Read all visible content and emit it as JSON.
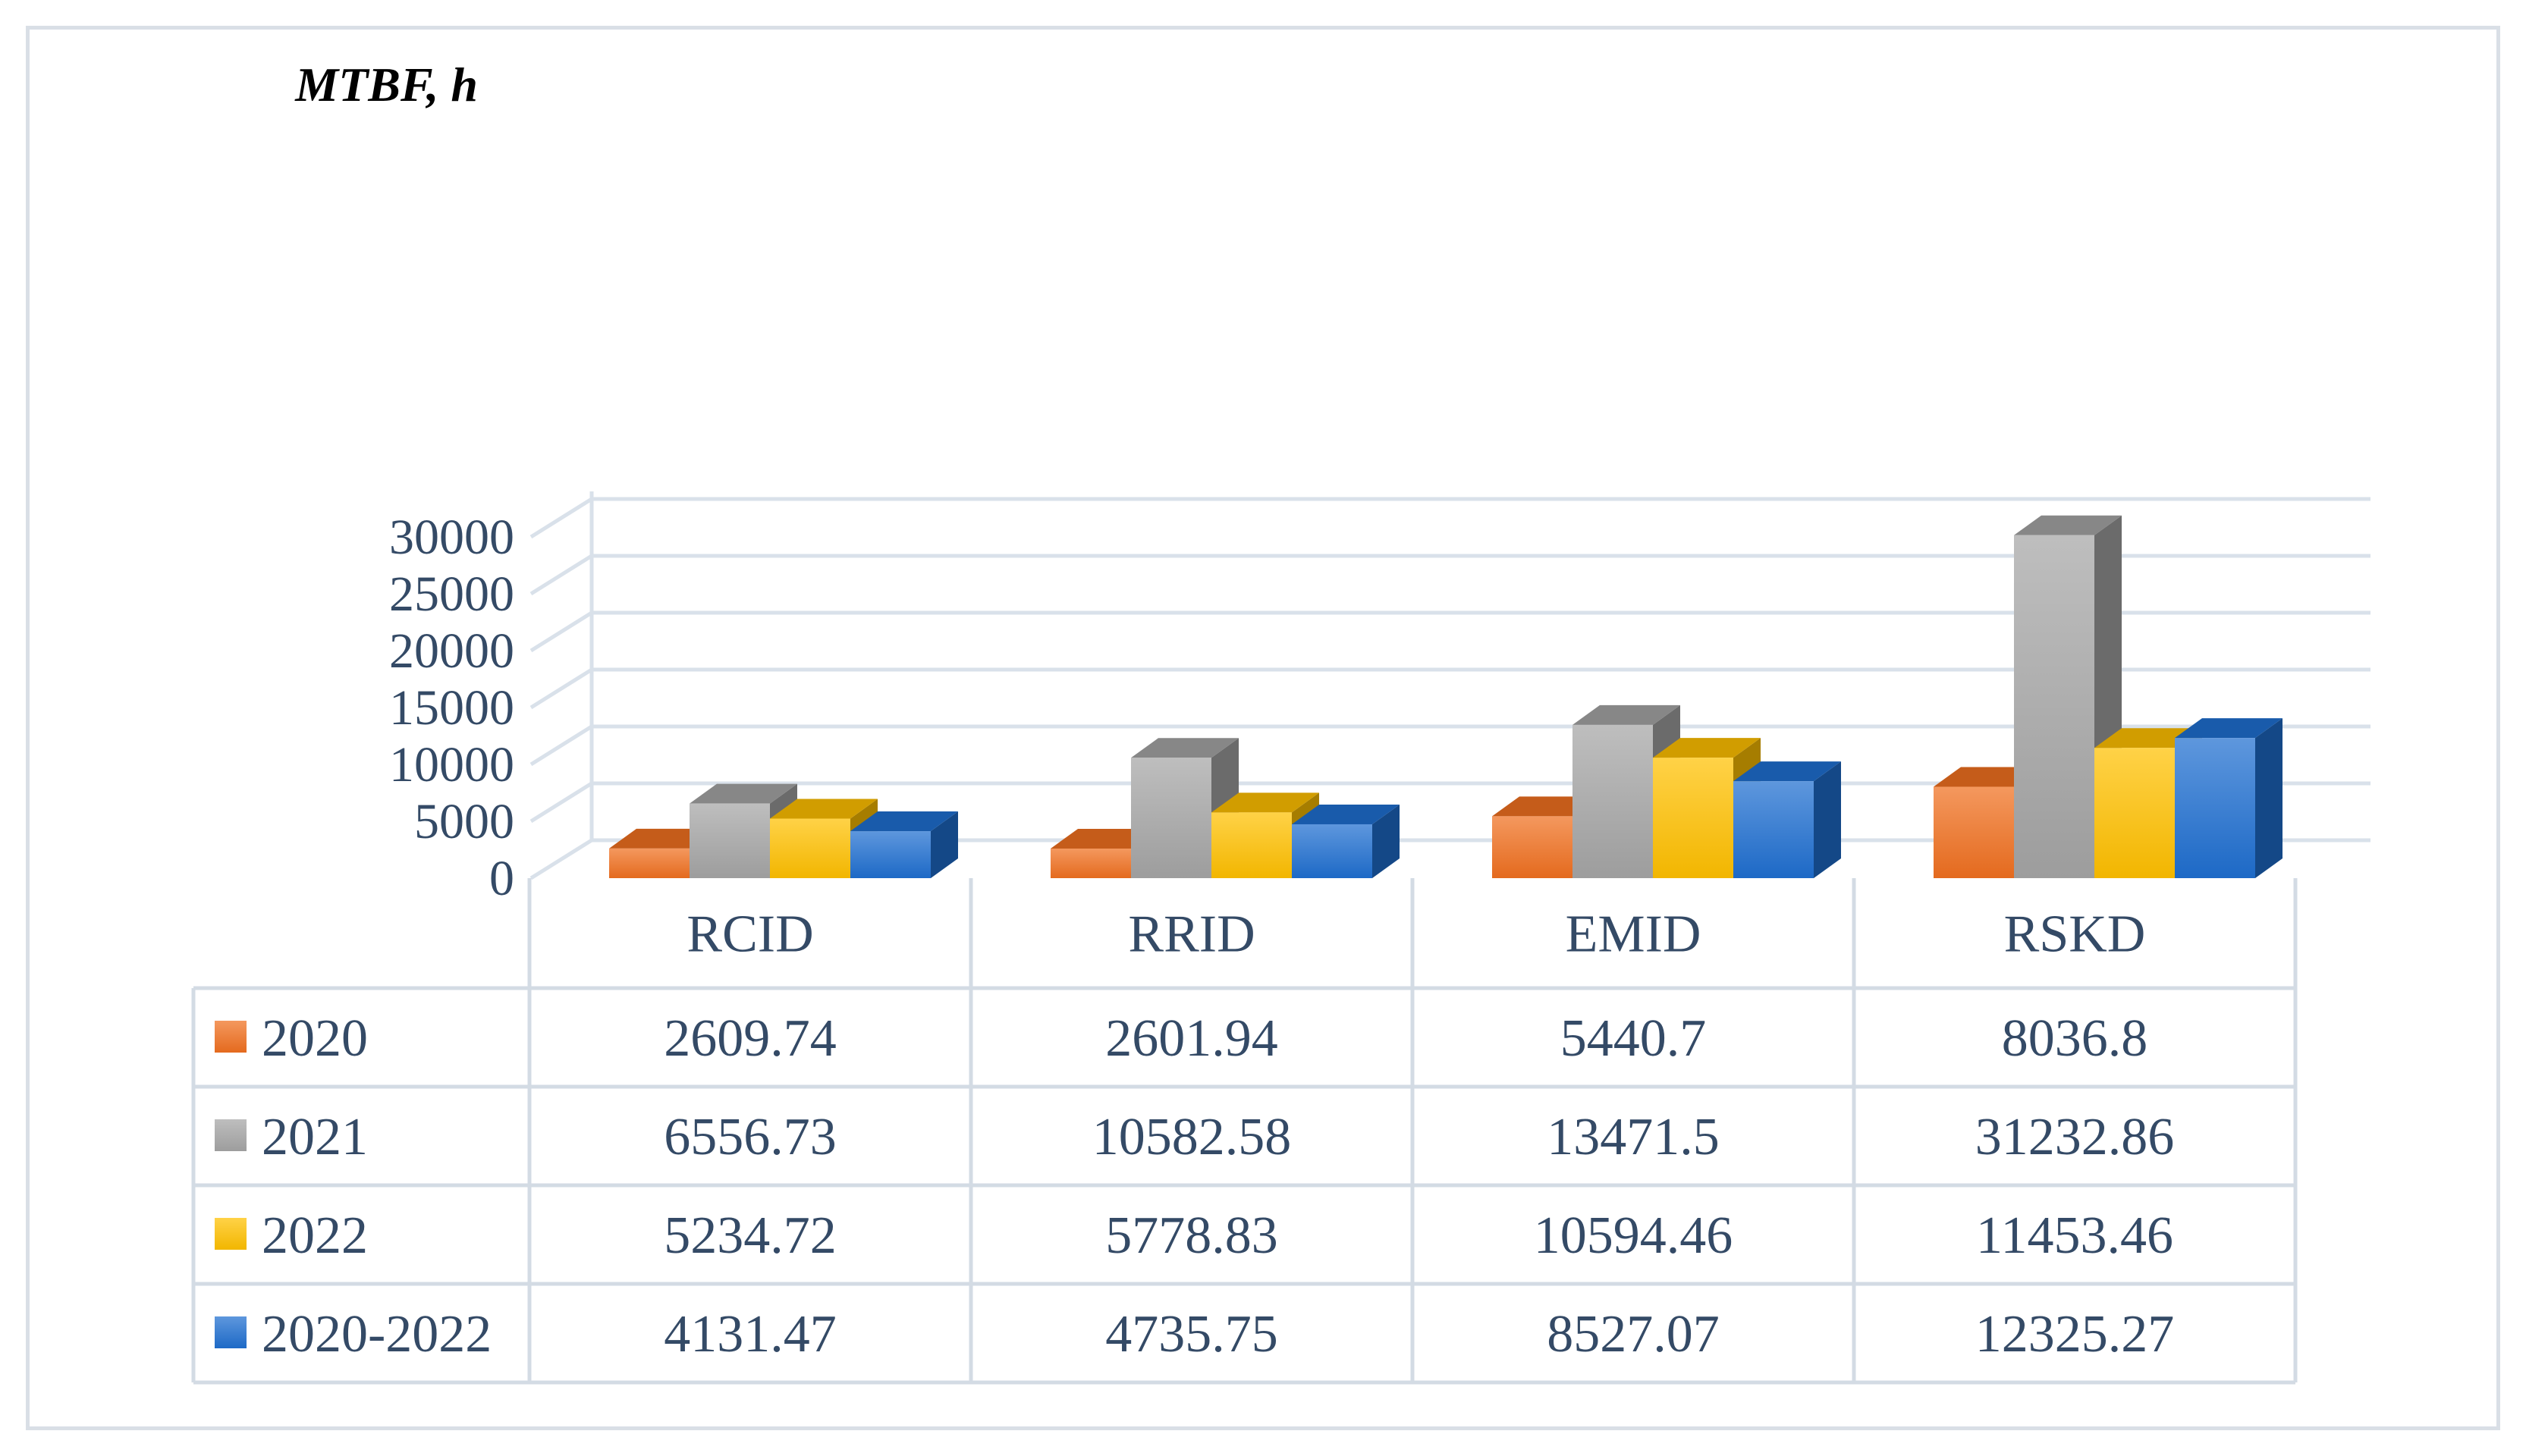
{
  "chart_data": {
    "type": "bar",
    "style": "3d-clustered-column-with-data-table",
    "ylabel": "MTBF, h",
    "ylim": [
      0,
      30000
    ],
    "yticks": [
      0,
      5000,
      10000,
      15000,
      20000,
      25000,
      30000
    ],
    "categories": [
      "RCID",
      "RRID",
      "EMID",
      "RSKD"
    ],
    "series": [
      {
        "name": "2020",
        "color": "#f07020",
        "values": [
          2609.74,
          2601.94,
          5440.7,
          8036.8
        ],
        "labels": [
          "2609.74",
          "2601.94",
          "5440.7",
          "8036.8"
        ]
      },
      {
        "name": "2021",
        "color": "#a5a5a5",
        "values": [
          6556.73,
          10582.58,
          13471.5,
          31232.86
        ],
        "labels": [
          "6556.73",
          "10582.58",
          "13471.5",
          "31232.86"
        ]
      },
      {
        "name": "2022",
        "color": "#ffc000",
        "values": [
          5234.72,
          5778.83,
          10594.46,
          11453.46
        ],
        "labels": [
          "5234.72",
          "5778.83",
          "10594.46",
          "11453.46"
        ]
      },
      {
        "name": "2020-2022",
        "color": "#1f6fd0",
        "values": [
          4131.47,
          4735.75,
          8527.07,
          12325.27
        ],
        "labels": [
          "4131.47",
          "4735.75",
          "8527.07",
          "12325.27"
        ]
      }
    ]
  }
}
